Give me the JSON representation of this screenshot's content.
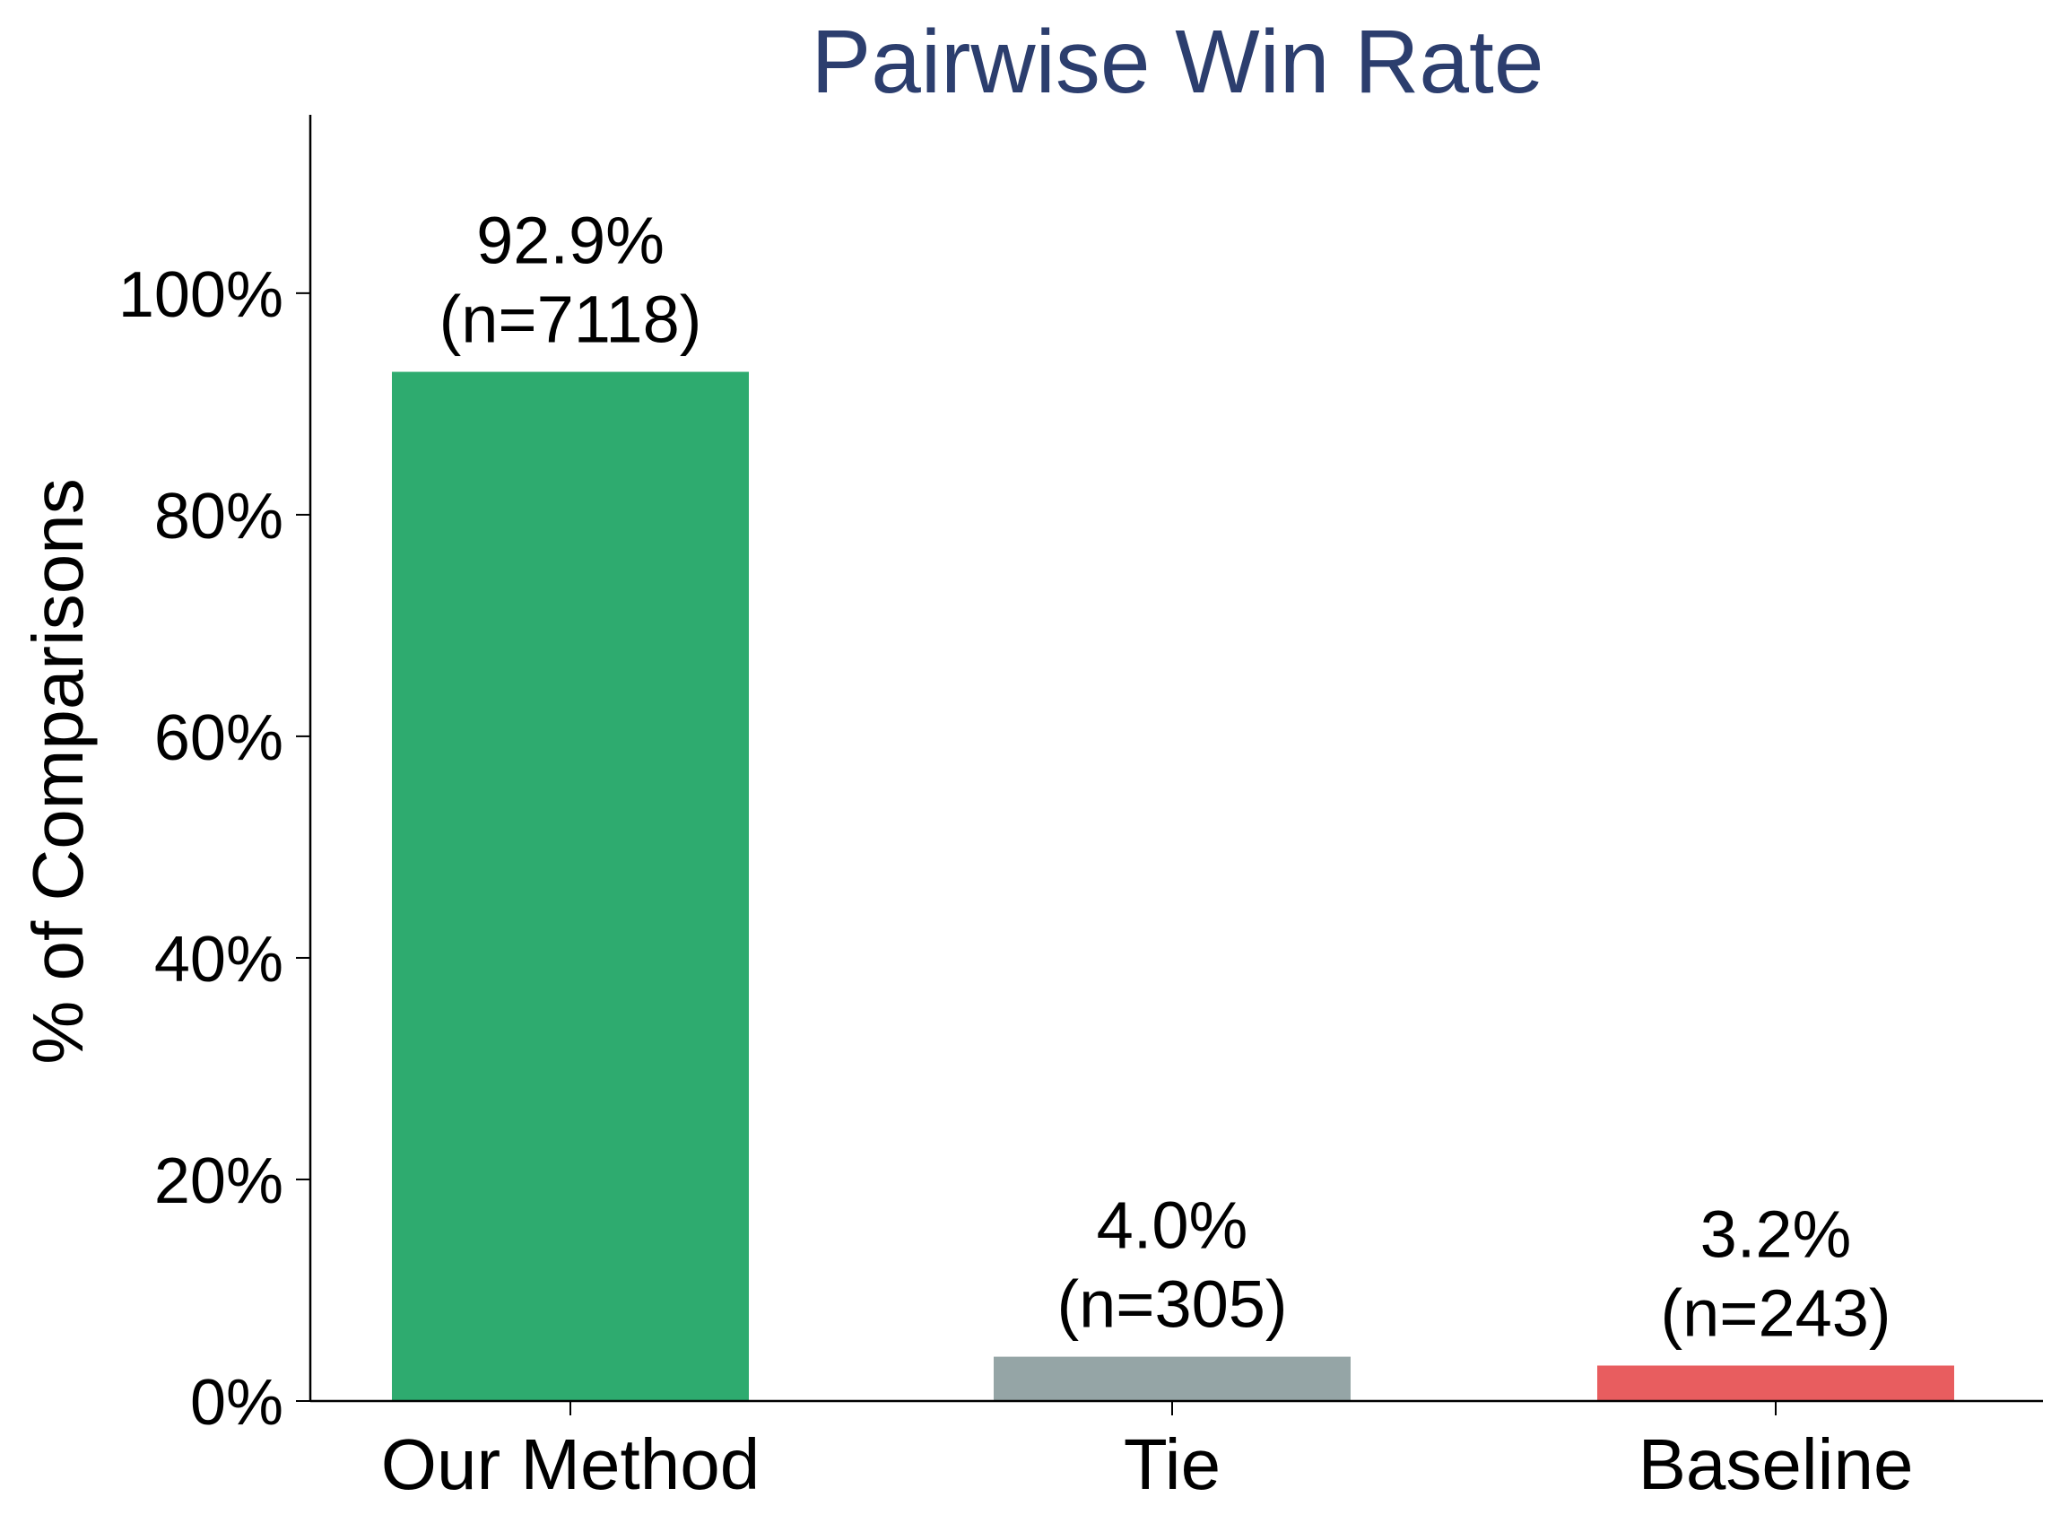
{
  "chart_data": {
    "type": "bar",
    "title": "Pairwise Win Rate",
    "xlabel": "",
    "ylabel": "% of Comparisons",
    "categories": [
      "Our Method",
      "Tie",
      "Baseline"
    ],
    "values": [
      92.9,
      4.0,
      3.2
    ],
    "counts": [
      7118,
      305,
      243
    ],
    "value_labels": [
      "92.9%",
      "4.0%",
      "3.2%"
    ],
    "count_labels": [
      "(n=7118)",
      "(n=305)",
      "(n=243)"
    ],
    "colors": [
      "#2eab6f",
      "#95a5a6",
      "#e85d5f"
    ],
    "title_color": "#2c3e6e",
    "ylim": [
      0,
      116.1
    ],
    "yticks": [
      0,
      20,
      40,
      60,
      80,
      100
    ],
    "ytick_labels": [
      "0%",
      "20%",
      "40%",
      "60%",
      "80%",
      "100%"
    ],
    "grid": false
  }
}
